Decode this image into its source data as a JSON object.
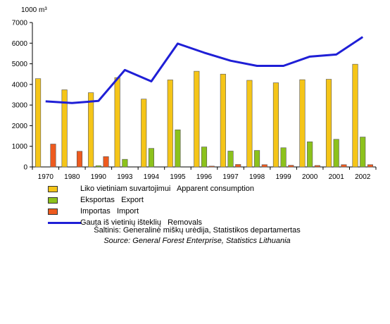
{
  "chart_data": {
    "type": "bar",
    "ylabel": "1000 m³",
    "ylim": [
      0,
      7000
    ],
    "yticks": [
      0,
      1000,
      2000,
      3000,
      4000,
      5000,
      6000,
      7000
    ],
    "grid": false,
    "legend_position": "bottom",
    "categories": [
      "1970",
      "1980",
      "1990",
      "1993",
      "1994",
      "1995",
      "1996",
      "1997",
      "1998",
      "1999",
      "2000",
      "2001",
      "2002"
    ],
    "series": [
      {
        "name": "Liko vietiniam suvartojimui   Apparent consumption",
        "type": "bar",
        "color": "#f5c518",
        "values": [
          4280,
          3740,
          3600,
          4330,
          3290,
          4220,
          4640,
          4500,
          4200,
          4080,
          4230,
          4250,
          4980
        ]
      },
      {
        "name": "Eksportas   Export",
        "type": "bar",
        "color": "#8cc21c",
        "values": [
          0,
          0,
          60,
          370,
          900,
          1800,
          970,
          770,
          800,
          930,
          1220,
          1340,
          1450
        ]
      },
      {
        "name": "Importas   Import",
        "type": "bar",
        "color": "#ee5a1e",
        "values": [
          1110,
          760,
          500,
          0,
          0,
          0,
          40,
          120,
          110,
          80,
          70,
          110,
          110
        ]
      },
      {
        "name": "Gauta iš vietinių išteklių   Removals",
        "type": "line",
        "color": "#1f1fd6",
        "values": [
          3180,
          3100,
          3200,
          4700,
          4150,
          5980,
          5540,
          5150,
          4900,
          4900,
          5350,
          5450,
          6300
        ]
      }
    ]
  },
  "source": {
    "lt": "Šaltinis: Generalinė miškų urėdija, Statistikos departamertas",
    "en": "Source: General Forest Enterprise, Statistics Lithuania"
  }
}
